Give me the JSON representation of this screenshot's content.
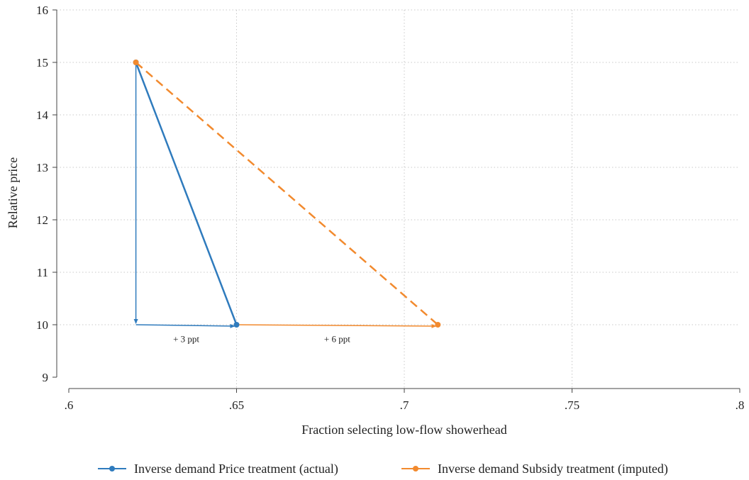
{
  "chart_data": {
    "type": "line",
    "xlabel": "Fraction selecting low-flow showerhead",
    "ylabel": "Relative price",
    "xlim": [
      0.6,
      0.8
    ],
    "ylim": [
      9,
      16
    ],
    "xticks": [
      0.6,
      0.65,
      0.7,
      0.75,
      0.8
    ],
    "xtick_labels": [
      ".6",
      ".65",
      ".7",
      ".75",
      ".8"
    ],
    "yticks": [
      9,
      10,
      11,
      12,
      13,
      14,
      15,
      16
    ],
    "ytick_labels": [
      "9",
      "10",
      "11",
      "12",
      "13",
      "14",
      "15",
      "16"
    ],
    "grid": true,
    "legend_position": "bottom",
    "series": [
      {
        "name": "Inverse demand Price treatment (actual)",
        "color": "#2f7bbd",
        "dash": "solid",
        "points": [
          [
            0.62,
            15
          ],
          [
            0.65,
            10
          ]
        ]
      },
      {
        "name": "Inverse demand Subsidy treatment (imputed)",
        "color": "#f28a2e",
        "dash": "dashed",
        "points": [
          [
            0.62,
            15
          ],
          [
            0.71,
            10
          ]
        ]
      }
    ],
    "arrows": [
      {
        "from": [
          0.62,
          15
        ],
        "to": [
          0.62,
          10
        ],
        "color": "#2f7bbd"
      },
      {
        "from": [
          0.62,
          10
        ],
        "to": [
          0.65,
          10
        ],
        "color": "#2f7bbd"
      },
      {
        "from": [
          0.65,
          10
        ],
        "to": [
          0.71,
          10
        ],
        "color": "#f28a2e"
      }
    ],
    "annotations": [
      {
        "text": "+ 3 ppt",
        "x": 0.635,
        "y": 9.67
      },
      {
        "text": "+ 6 ppt",
        "x": 0.68,
        "y": 9.67
      }
    ]
  }
}
